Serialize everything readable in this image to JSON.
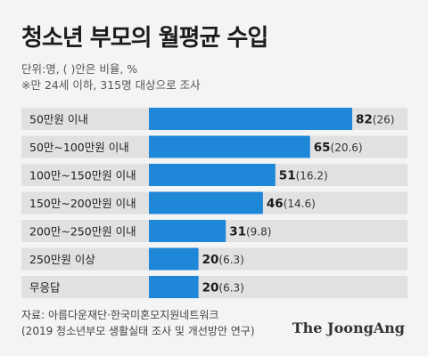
{
  "title": "청소년 부모의 월평균 수입",
  "notes": {
    "unit": "단위:명, ( )안은 비율, %",
    "sample": "※만 24세 이하, 315명 대상으로 조사"
  },
  "source": {
    "line1": "자료: 아름다운재단·한국미혼모지원네트워크",
    "line2": "(2019 청소년부모 생활실태 조사 및 개선방안 연구)"
  },
  "brand": "The JoongAng",
  "colors": {
    "bar": "#1f87d8",
    "label_band": "#e1e1e1",
    "background": "#f4f4f4"
  },
  "chart_data": {
    "type": "bar",
    "orientation": "horizontal",
    "categories": [
      "50만원 이내",
      "50만~100만원 이내",
      "100만~150만원 이내",
      "150만~200만원 이내",
      "200만~250만원 이내",
      "250만원 이상",
      "무응답"
    ],
    "values": [
      82,
      65,
      51,
      46,
      31,
      20,
      20
    ],
    "value_labels": [
      "82",
      "65",
      "51",
      "46",
      "31",
      "20",
      "20"
    ],
    "percent_labels": [
      "(26)",
      "(20.6)",
      "(16.2)",
      "(14.6)",
      "(9.8)",
      "(6.3)",
      "(6.3)"
    ],
    "xlim": [
      0,
      100
    ],
    "grid": false,
    "legend": "none"
  }
}
